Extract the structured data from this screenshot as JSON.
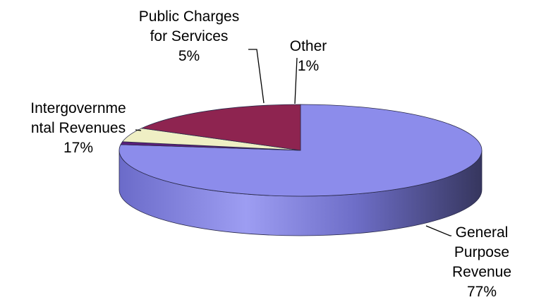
{
  "chart_data": {
    "type": "pie",
    "three_d": true,
    "legend": "none",
    "slices": [
      {
        "label_lines": [
          "General",
          "Purpose",
          "Revenue"
        ],
        "percent_label": "77%",
        "value": 77,
        "color": "#8C8CEB"
      },
      {
        "label_lines": [
          "Other"
        ],
        "percent_label": "1%",
        "value": 1,
        "color": "#5A1E7A"
      },
      {
        "label_lines": [
          "Public Charges",
          "for Services"
        ],
        "percent_label": "5%",
        "value": 5,
        "color": "#EFEFC4"
      },
      {
        "label_lines": [
          "Intergovernme",
          "ntal Revenues"
        ],
        "percent_label": "17%",
        "value": 17,
        "color": "#8E2450"
      }
    ]
  }
}
